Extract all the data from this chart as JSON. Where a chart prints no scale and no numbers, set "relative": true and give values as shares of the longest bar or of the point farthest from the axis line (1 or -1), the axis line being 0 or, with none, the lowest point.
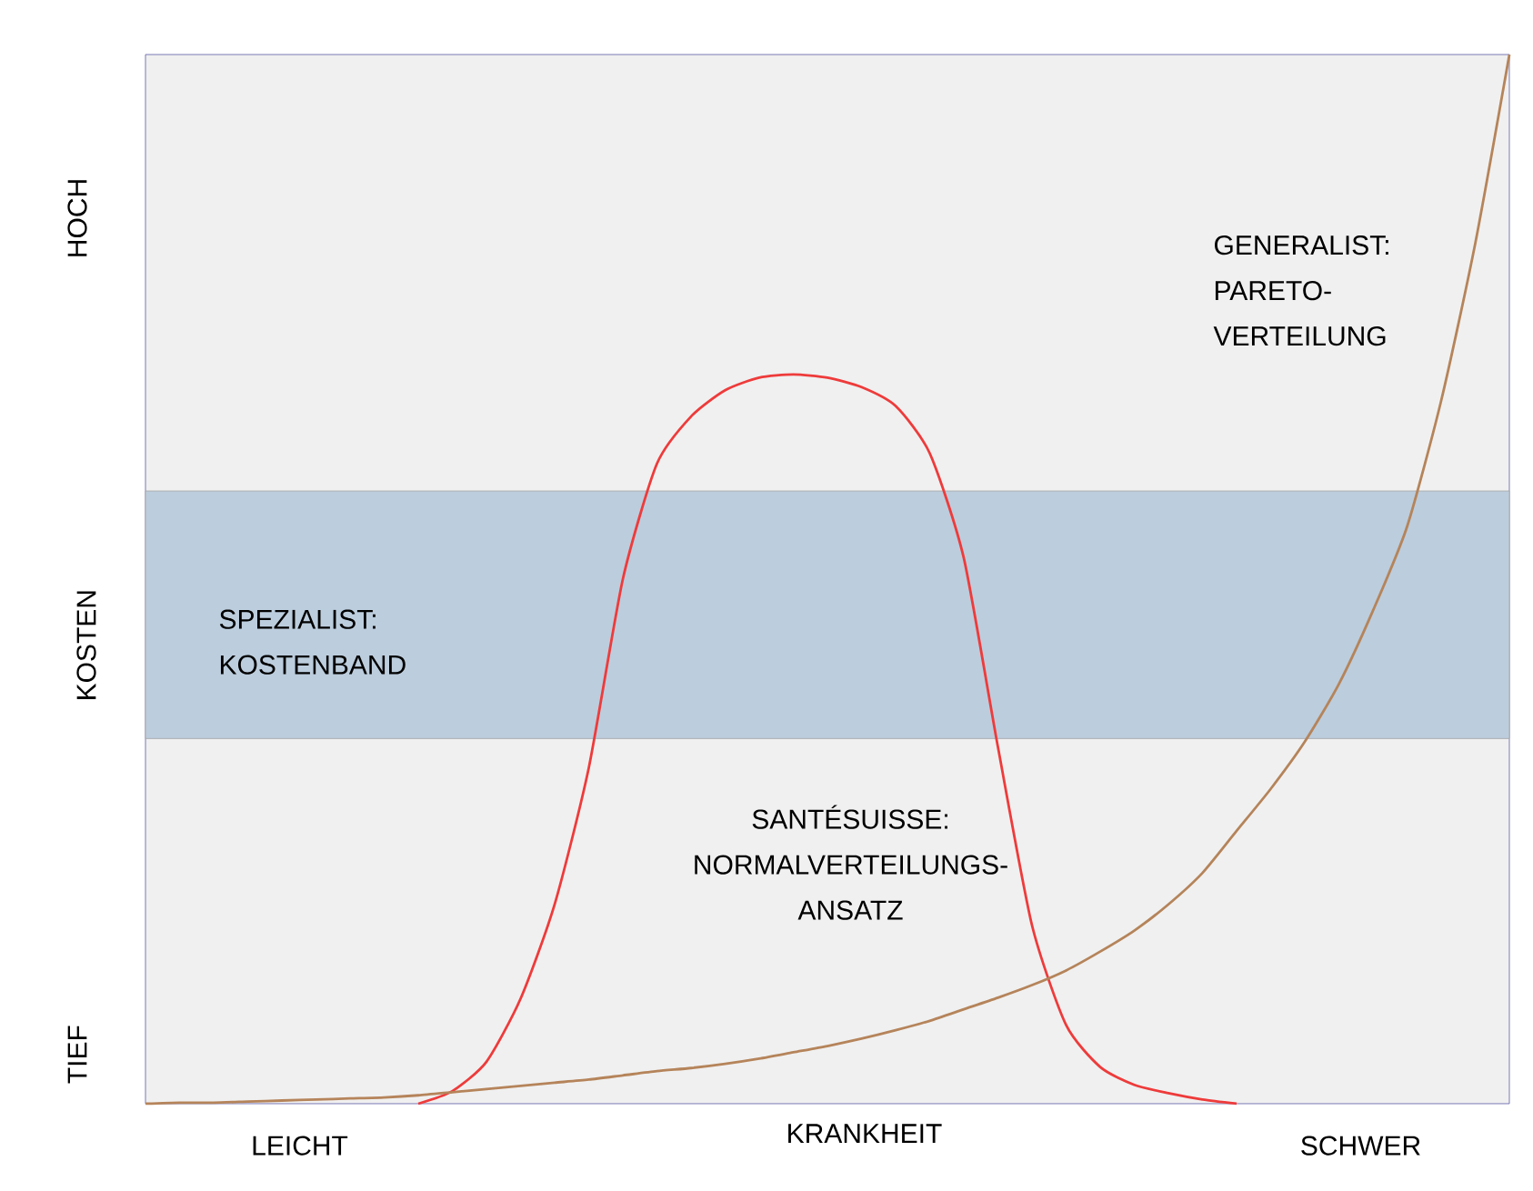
{
  "chart_data": {
    "type": "line",
    "relative": true,
    "ylabel": "KOSTEN",
    "xlabel": "KRANKHEIT",
    "categories": [
      null,
      null,
      null,
      null,
      null,
      null,
      null,
      null,
      null,
      null,
      null,
      null,
      null,
      null,
      null,
      null,
      null,
      null,
      null,
      null,
      null,
      null,
      null,
      null,
      null,
      null,
      null,
      null,
      null,
      null,
      null,
      null,
      null,
      null,
      null,
      null,
      null,
      null,
      null,
      null,
      null
    ],
    "series": [
      {
        "color": "#ee3b3b",
        "values": [
          null,
          null,
          null,
          null,
          null,
          null,
          null,
          null,
          0,
          0.012,
          0.04,
          0.1,
          0.19,
          0.32,
          0.5,
          0.61,
          0.655,
          0.68,
          0.692,
          0.695,
          0.692,
          0.683,
          0.665,
          0.62,
          0.52,
          0.34,
          0.17,
          0.075,
          0.035,
          0.018,
          0.01,
          0.004,
          0,
          null,
          null,
          null,
          null,
          null,
          null,
          null,
          null
        ]
      },
      {
        "color": "#b5845a",
        "values": [
          0,
          0.001,
          0.001,
          0.002,
          0.003,
          0.004,
          0.005,
          0.006,
          0.008,
          0.011,
          0.014,
          0.017,
          0.02,
          0.023,
          0.027,
          0.031,
          0.034,
          0.038,
          0.043,
          0.049,
          0.055,
          0.062,
          0.07,
          0.079,
          0.09,
          0.101,
          0.113,
          0.127,
          0.145,
          0.165,
          0.19,
          0.22,
          0.26,
          0.3,
          0.345,
          0.4,
          0.47,
          0.55,
          0.67,
          0.82,
          1.0
        ]
      }
    ],
    "bands": [
      {
        "axis": "y",
        "from": 0.348,
        "to": 0.584,
        "color": "#bccddd"
      }
    ],
    "annotations": [
      "TIEF",
      "HOCH",
      "LEICHT",
      "SCHWER",
      "SPEZIALIST: KOSTENBAND",
      "SANTÉSUISSE: NORMALVERTEILUNGS-ANSATZ",
      "GENERALIST: PARETO-VERTEILUNG"
    ]
  }
}
